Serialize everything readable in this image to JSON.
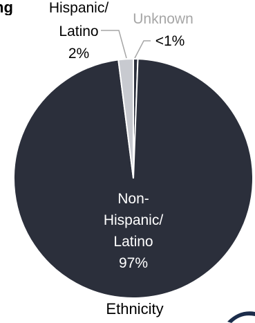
{
  "header_fragment": "ng",
  "chart_data": {
    "type": "pie",
    "title": "Ethnicity",
    "slices": [
      {
        "label_lines": [
          "Non-",
          "Hispanic/",
          "Latino"
        ],
        "value_label": "97%",
        "value": 97,
        "color": "#2b2f3b"
      },
      {
        "label_lines": [
          "Hispanic/",
          "Latino"
        ],
        "value_label": "2%",
        "value": 2,
        "color": "#c8cad0"
      },
      {
        "label_lines": [
          "Unknown"
        ],
        "value_label": "<1%",
        "value": 0.6,
        "color": "#2b2f3b"
      }
    ],
    "legend": "none",
    "label_color_inside": "#ffffff",
    "label_color_outside": "#000000",
    "leader_line_color": "#a6a6a6"
  }
}
